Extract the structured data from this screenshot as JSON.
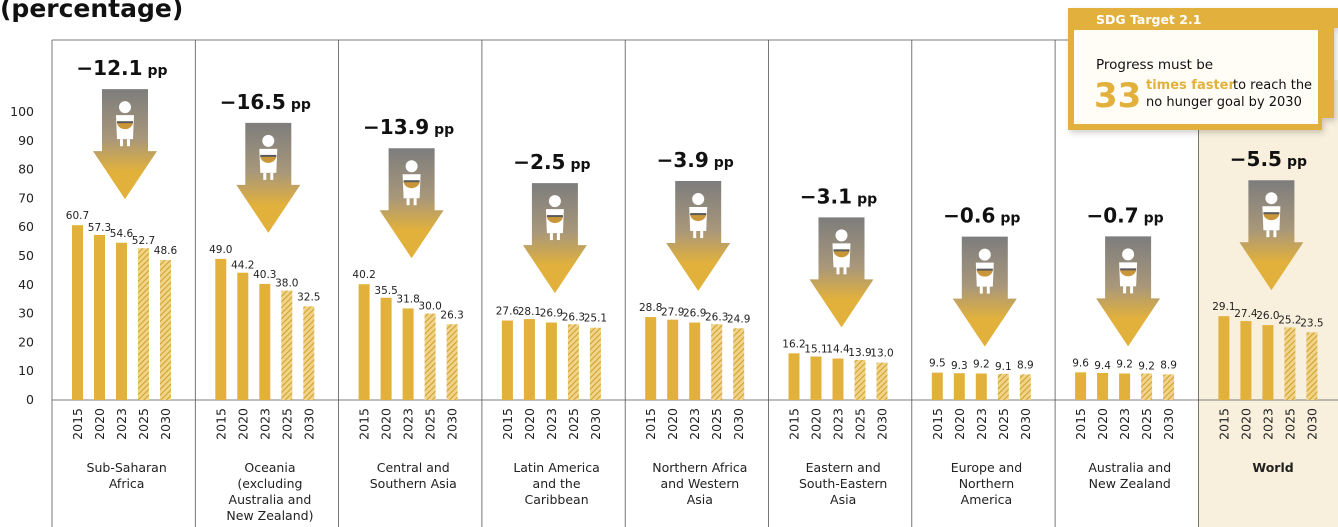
{
  "title_fragment": "(percentage)",
  "callout": {
    "header": "SDG Target 2.1",
    "line1": "Progress must be",
    "big_number": "33",
    "highlight": "times faster",
    "rest1": "to reach the",
    "rest2": "no hunger goal by 2030",
    "accent_color": "#e2b13c"
  },
  "colors": {
    "bar": "#e2b13c",
    "bar_projection_stripe": "#c99a2c",
    "highlight_bg": "#f8f0dc",
    "arrow_gray": "#8a8a8a",
    "arrow_gold": "#e2b13c"
  },
  "chart_data": {
    "type": "bar",
    "y_ticks": [
      0,
      10,
      20,
      30,
      40,
      50,
      60,
      70,
      80,
      90,
      100
    ],
    "ylim": [
      0,
      100
    ],
    "years": [
      "2015",
      "2020",
      "2023",
      "2025",
      "2030"
    ],
    "projected_years": [
      "2025",
      "2030"
    ],
    "highlighted_region": "World",
    "regions": [
      {
        "name": [
          "Sub-Saharan",
          "Africa"
        ],
        "values": [
          60.7,
          57.3,
          54.6,
          52.7,
          48.6
        ],
        "labels": [
          "60.7",
          "57.3",
          "54.6",
          "52.7",
          "48.6"
        ],
        "change": "−12.1",
        "unit": "pp"
      },
      {
        "name": [
          "Oceania",
          "(excluding",
          "Australia and",
          "New Zealand)"
        ],
        "values": [
          49.0,
          44.2,
          40.3,
          38.0,
          32.5
        ],
        "labels": [
          "49.0",
          "44.2",
          "40.3",
          "38.0",
          "32.5"
        ],
        "change": "−16.5",
        "unit": "pp"
      },
      {
        "name": [
          "Central and",
          "Southern Asia"
        ],
        "values": [
          40.2,
          35.5,
          31.8,
          30.0,
          26.3
        ],
        "labels": [
          "40.2",
          "35.5",
          "31.8",
          "30.0",
          "26.3"
        ],
        "change": "−13.9",
        "unit": "pp"
      },
      {
        "name": [
          "Latin America",
          "and the",
          "Caribbean"
        ],
        "values": [
          27.6,
          28.1,
          26.9,
          26.3,
          25.1
        ],
        "labels": [
          "27.6",
          "28.1",
          "26.9",
          "26.3",
          "25.1"
        ],
        "change": "−2.5",
        "unit": "pp"
      },
      {
        "name": [
          "Northern Africa",
          "and Western",
          "Asia"
        ],
        "values": [
          28.8,
          27.9,
          26.9,
          26.3,
          24.9
        ],
        "labels": [
          "28.8",
          "27.9",
          "26.9",
          "26.3",
          "24.9"
        ],
        "change": "−3.9",
        "unit": "pp"
      },
      {
        "name": [
          "Eastern and",
          "South-Eastern",
          "Asia"
        ],
        "values": [
          16.2,
          15.1,
          14.4,
          13.9,
          13.0
        ],
        "labels": [
          "16.2",
          "15.1",
          "14.4",
          "13.9",
          "13.0"
        ],
        "change": "−3.1",
        "unit": "pp"
      },
      {
        "name": [
          "Europe and",
          "Northern",
          "America"
        ],
        "values": [
          9.5,
          9.3,
          9.2,
          9.1,
          8.9
        ],
        "labels": [
          "9.5",
          "9.3",
          "9.2",
          "9.1",
          "8.9"
        ],
        "change": "−0.6",
        "unit": "pp"
      },
      {
        "name": [
          "Australia and",
          "New Zealand"
        ],
        "values": [
          9.6,
          9.4,
          9.2,
          9.2,
          8.9
        ],
        "labels": [
          "9.6",
          "9.4",
          "9.2",
          "9.2",
          "8.9"
        ],
        "change": "−0.7",
        "unit": "pp"
      },
      {
        "name": [
          "World"
        ],
        "values": [
          29.1,
          27.4,
          26.0,
          25.2,
          23.5
        ],
        "labels": [
          "29.1",
          "27.4",
          "26.0",
          "25.2",
          "23.5"
        ],
        "change": "−5.5",
        "unit": "pp"
      }
    ]
  }
}
